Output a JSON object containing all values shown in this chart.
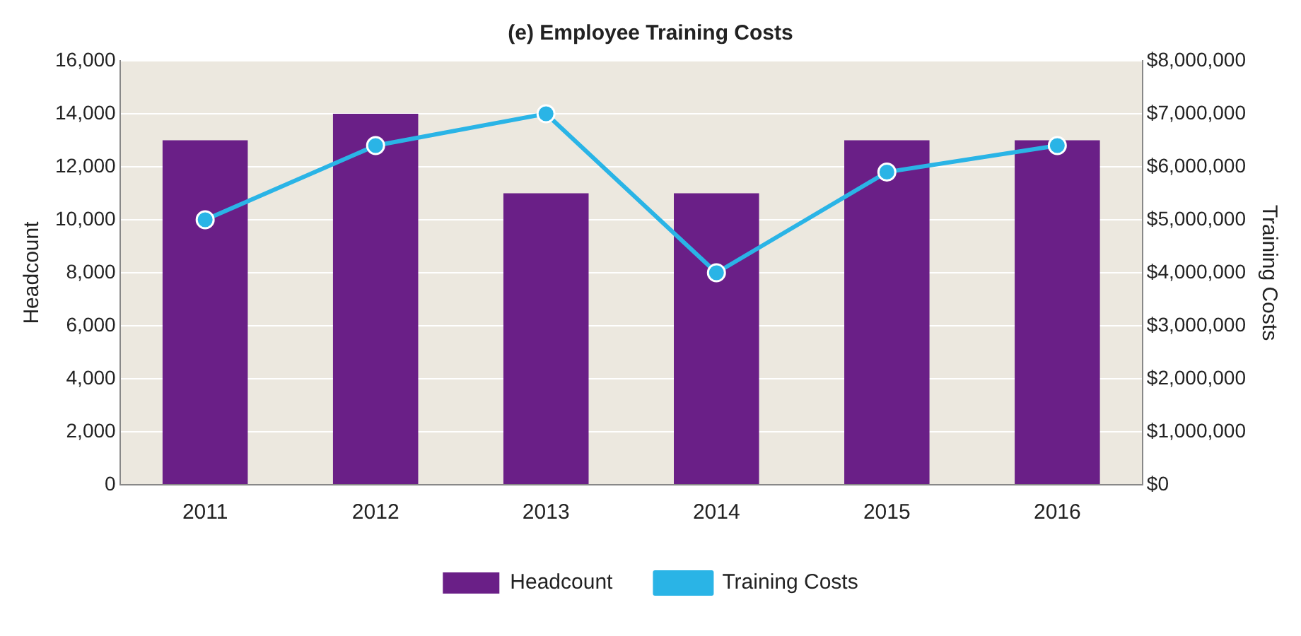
{
  "chart_data": {
    "type": "bar",
    "title": "(e) Employee Training Costs",
    "ylabel": "Headcount",
    "y2label": "Training Costs",
    "categories": [
      "2011",
      "2012",
      "2013",
      "2014",
      "2015",
      "2016"
    ],
    "series": [
      {
        "name": "Headcount",
        "color": "#6a1f87",
        "values": [
          13000,
          14000,
          11000,
          11000,
          13000,
          13000
        ]
      },
      {
        "name": "Training Costs",
        "type": "line",
        "axis": "y2",
        "color": "#2ab4e6",
        "values": [
          5000000,
          6400000,
          7000000,
          4000000,
          5900000,
          6400000
        ]
      }
    ],
    "ylim": [
      0,
      16000
    ],
    "yticks": [
      {
        "value": 0,
        "label": "0"
      },
      {
        "value": 2000,
        "label": "2,000"
      },
      {
        "value": 4000,
        "label": "4,000"
      },
      {
        "value": 6000,
        "label": "6,000"
      },
      {
        "value": 8000,
        "label": "8,000"
      },
      {
        "value": 10000,
        "label": "10,000"
      },
      {
        "value": 12000,
        "label": "12,000"
      },
      {
        "value": 14000,
        "label": "14,000"
      },
      {
        "value": 16000,
        "label": "16,000"
      }
    ],
    "y2lim": [
      0,
      8000000
    ],
    "y2ticks": [
      {
        "value": 0,
        "label": "$0"
      },
      {
        "value": 1000000,
        "label": "$1,000,000"
      },
      {
        "value": 2000000,
        "label": "$2,000,000"
      },
      {
        "value": 3000000,
        "label": "$3,000,000"
      },
      {
        "value": 4000000,
        "label": "$4,000,000"
      },
      {
        "value": 5000000,
        "label": "$5,000,000"
      },
      {
        "value": 6000000,
        "label": "$6,000,000"
      },
      {
        "value": 7000000,
        "label": "$7,000,000"
      },
      {
        "value": 8000000,
        "label": "$8,000,000"
      }
    ],
    "grid": "y",
    "legend": "bottom",
    "marker": "circle"
  }
}
